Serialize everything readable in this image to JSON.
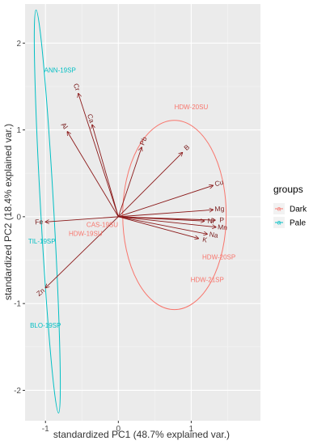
{
  "chart_data": {
    "type": "scatter",
    "subtype": "pca-biplot",
    "xlabel": "standardized PC1 (48.7% explained var.)",
    "ylabel": "standardized PC2 (18.4% explained var.)",
    "xlim": [
      -1.28,
      1.95
    ],
    "ylim": [
      -2.35,
      2.45
    ],
    "x_ticks": [
      -1,
      0,
      1
    ],
    "y_ticks": [
      -2,
      -1,
      0,
      1,
      2
    ],
    "x_tick_labels": [
      "-1",
      "0",
      "1"
    ],
    "y_tick_labels": [
      "-2",
      "-1",
      "0",
      "1",
      "2"
    ],
    "grid": true,
    "legend": {
      "title": "groups",
      "position": "right",
      "entries": [
        {
          "label": "Dark",
          "color": "#F8766D"
        },
        {
          "label": "Pale",
          "color": "#00BFC4"
        }
      ]
    },
    "colors": {
      "Dark": "#F8766D",
      "Pale": "#00BFC4",
      "arrow": "#8B1A1A"
    },
    "loadings": [
      {
        "name": "Cr",
        "x": -0.55,
        "y": 1.42
      },
      {
        "name": "Al",
        "x": -0.7,
        "y": 0.98
      },
      {
        "name": "Ca",
        "x": -0.36,
        "y": 1.06
      },
      {
        "name": "Pb",
        "x": 0.32,
        "y": 0.8
      },
      {
        "name": "B",
        "x": 0.88,
        "y": 0.74
      },
      {
        "name": "Cu",
        "x": 1.3,
        "y": 0.36
      },
      {
        "name": "Mg",
        "x": 1.3,
        "y": 0.08
      },
      {
        "name": "P",
        "x": 1.33,
        "y": -0.04
      },
      {
        "name": "Ni",
        "x": 1.18,
        "y": -0.05
      },
      {
        "name": "Mn",
        "x": 1.34,
        "y": -0.12
      },
      {
        "name": "Na",
        "x": 1.22,
        "y": -0.2
      },
      {
        "name": "K",
        "x": 1.1,
        "y": -0.25
      },
      {
        "name": "Fe",
        "x": -1.0,
        "y": -0.06
      },
      {
        "name": "Zn",
        "x": -1.0,
        "y": -0.82
      }
    ],
    "observations": [
      {
        "label": "HDW-20SU",
        "group": "Dark",
        "x": 1.0,
        "y": 1.26
      },
      {
        "label": "CAS-19SU",
        "group": "Dark",
        "x": -0.22,
        "y": -0.1
      },
      {
        "label": "HDW-19SU",
        "group": "Dark",
        "x": -0.45,
        "y": -0.2
      },
      {
        "label": "HDW-20SP",
        "group": "Dark",
        "x": 1.38,
        "y": -0.47
      },
      {
        "label": "HDW-21SP",
        "group": "Dark",
        "x": 1.22,
        "y": -0.73
      },
      {
        "label": "ANN-19SP",
        "group": "Pale",
        "x": -0.8,
        "y": 1.68
      },
      {
        "label": "TIL-19SP",
        "group": "Pale",
        "x": -1.05,
        "y": -0.29
      },
      {
        "label": "BLO-19SP",
        "group": "Pale",
        "x": -1.0,
        "y": -1.26
      }
    ],
    "ellipses": [
      {
        "group": "Dark",
        "cx": 0.77,
        "cy": 0.02,
        "rx": 0.71,
        "ry": 1.09,
        "angle": 0
      },
      {
        "group": "Pale",
        "cx": -0.975,
        "cy": 0.06,
        "rx": 0.09,
        "ry": 2.325,
        "angle": -3.2
      }
    ]
  }
}
